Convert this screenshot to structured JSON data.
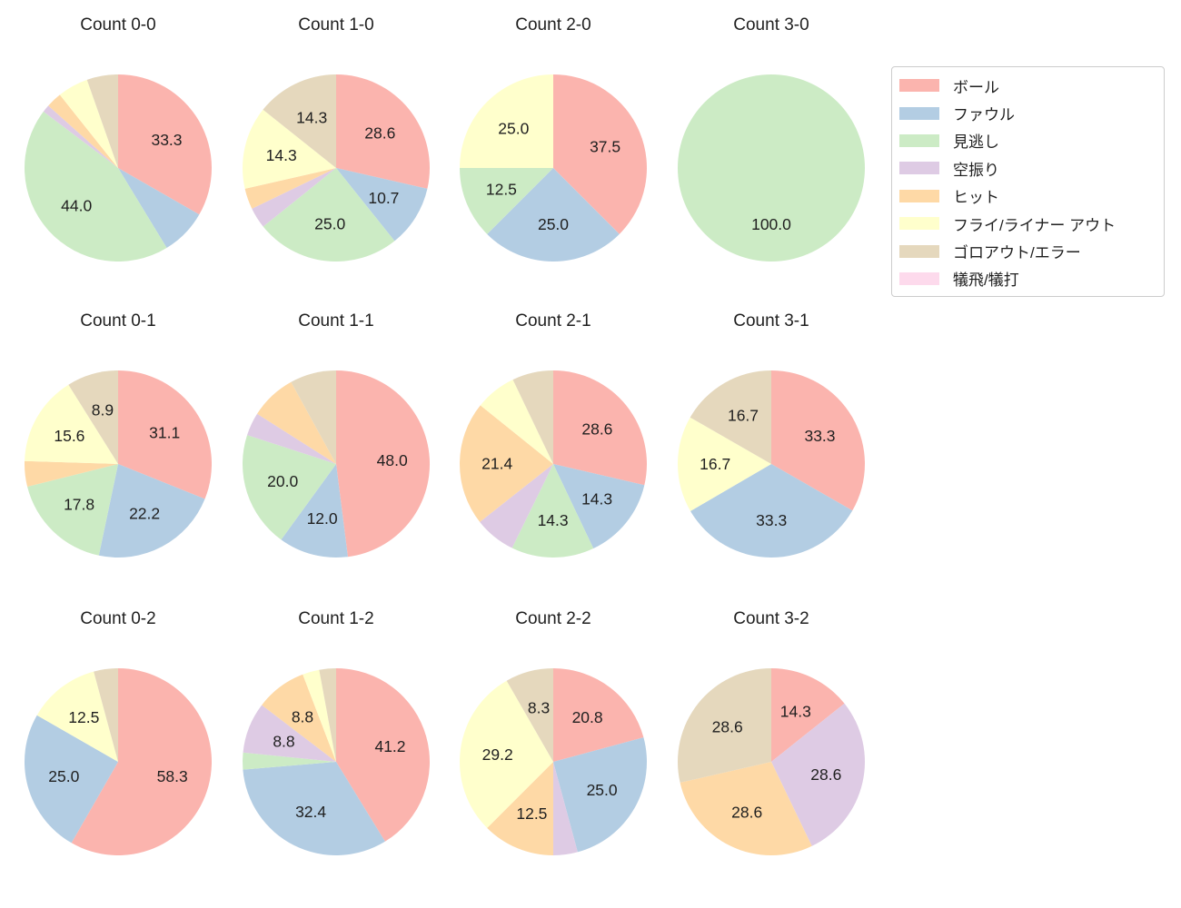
{
  "figure": {
    "kind": "pie-chart-grid",
    "background": "#ffffff",
    "text_color": "#1f1f1f",
    "grid": "3 rows x 4 columns"
  },
  "legend": {
    "position": "top-right",
    "border_color": "#cccccc",
    "items": [
      {
        "label": "ボール",
        "color": "#fbb4ae"
      },
      {
        "label": "ファウル",
        "color": "#b3cde3"
      },
      {
        "label": "見逃し",
        "color": "#ccebc5"
      },
      {
        "label": "空振り",
        "color": "#decbe4"
      },
      {
        "label": "ヒット",
        "color": "#fed9a6"
      },
      {
        "label": "フライ/ライナー アウト",
        "color": "#ffffcc"
      },
      {
        "label": "ゴロアウト/エラー",
        "color": "#e5d8bd"
      },
      {
        "label": "犠飛/犠打",
        "color": "#fddaec"
      }
    ]
  },
  "chart_data": [
    {
      "type": "pie",
      "title": "Count 0-0",
      "start_angle": 90,
      "direction": "clockwise",
      "slices": [
        {
          "category": "ボール",
          "value": 33.3,
          "label": "33.3"
        },
        {
          "category": "ファウル",
          "value": 8.0,
          "label": ""
        },
        {
          "category": "見逃し",
          "value": 44.0,
          "label": "44.0"
        },
        {
          "category": "空振り",
          "value": 1.3,
          "label": ""
        },
        {
          "category": "ヒット",
          "value": 2.7,
          "label": ""
        },
        {
          "category": "フライ/ライナー アウト",
          "value": 5.3,
          "label": ""
        },
        {
          "category": "ゴロアウト/エラー",
          "value": 5.4,
          "label": ""
        }
      ]
    },
    {
      "type": "pie",
      "title": "Count 1-0",
      "start_angle": 90,
      "direction": "clockwise",
      "slices": [
        {
          "category": "ボール",
          "value": 28.6,
          "label": "28.6"
        },
        {
          "category": "ファウル",
          "value": 10.7,
          "label": "10.7"
        },
        {
          "category": "見逃し",
          "value": 25.0,
          "label": "25.0"
        },
        {
          "category": "空振り",
          "value": 3.6,
          "label": ""
        },
        {
          "category": "ヒット",
          "value": 3.6,
          "label": ""
        },
        {
          "category": "フライ/ライナー アウト",
          "value": 14.3,
          "label": "14.3"
        },
        {
          "category": "ゴロアウト/エラー",
          "value": 14.3,
          "label": "14.3"
        }
      ]
    },
    {
      "type": "pie",
      "title": "Count 2-0",
      "start_angle": 90,
      "direction": "clockwise",
      "slices": [
        {
          "category": "ボール",
          "value": 37.5,
          "label": "37.5"
        },
        {
          "category": "ファウル",
          "value": 25.0,
          "label": "25.0"
        },
        {
          "category": "見逃し",
          "value": 12.5,
          "label": "12.5"
        },
        {
          "category": "フライ/ライナー アウト",
          "value": 25.0,
          "label": "25.0"
        }
      ]
    },
    {
      "type": "pie",
      "title": "Count 3-0",
      "start_angle": 90,
      "direction": "clockwise",
      "slices": [
        {
          "category": "見逃し",
          "value": 100.0,
          "label": "100.0"
        }
      ]
    },
    {
      "type": "pie",
      "title": "Count 0-1",
      "start_angle": 90,
      "direction": "clockwise",
      "slices": [
        {
          "category": "ボール",
          "value": 31.1,
          "label": "31.1"
        },
        {
          "category": "ファウル",
          "value": 22.2,
          "label": "22.2"
        },
        {
          "category": "見逃し",
          "value": 17.8,
          "label": "17.8"
        },
        {
          "category": "ヒット",
          "value": 4.4,
          "label": ""
        },
        {
          "category": "フライ/ライナー アウト",
          "value": 15.6,
          "label": "15.6"
        },
        {
          "category": "ゴロアウト/エラー",
          "value": 8.9,
          "label": "8.9"
        }
      ]
    },
    {
      "type": "pie",
      "title": "Count 1-1",
      "start_angle": 90,
      "direction": "clockwise",
      "slices": [
        {
          "category": "ボール",
          "value": 48.0,
          "label": "48.0"
        },
        {
          "category": "ファウル",
          "value": 12.0,
          "label": "12.0"
        },
        {
          "category": "見逃し",
          "value": 20.0,
          "label": "20.0"
        },
        {
          "category": "空振り",
          "value": 4.0,
          "label": ""
        },
        {
          "category": "ヒット",
          "value": 8.0,
          "label": ""
        },
        {
          "category": "ゴロアウト/エラー",
          "value": 8.0,
          "label": ""
        }
      ]
    },
    {
      "type": "pie",
      "title": "Count 2-1",
      "start_angle": 90,
      "direction": "clockwise",
      "slices": [
        {
          "category": "ボール",
          "value": 28.6,
          "label": "28.6"
        },
        {
          "category": "ファウル",
          "value": 14.3,
          "label": "14.3"
        },
        {
          "category": "見逃し",
          "value": 14.3,
          "label": "14.3"
        },
        {
          "category": "空振り",
          "value": 7.1,
          "label": ""
        },
        {
          "category": "ヒット",
          "value": 21.4,
          "label": "21.4"
        },
        {
          "category": "フライ/ライナー アウト",
          "value": 7.1,
          "label": ""
        },
        {
          "category": "ゴロアウト/エラー",
          "value": 7.1,
          "label": ""
        }
      ]
    },
    {
      "type": "pie",
      "title": "Count 3-1",
      "start_angle": 90,
      "direction": "clockwise",
      "slices": [
        {
          "category": "ボール",
          "value": 33.3,
          "label": "33.3"
        },
        {
          "category": "ファウル",
          "value": 33.3,
          "label": "33.3"
        },
        {
          "category": "フライ/ライナー アウト",
          "value": 16.7,
          "label": "16.7"
        },
        {
          "category": "ゴロアウト/エラー",
          "value": 16.7,
          "label": "16.7"
        }
      ]
    },
    {
      "type": "pie",
      "title": "Count 0-2",
      "start_angle": 90,
      "direction": "clockwise",
      "slices": [
        {
          "category": "ボール",
          "value": 58.3,
          "label": "58.3"
        },
        {
          "category": "ファウル",
          "value": 25.0,
          "label": "25.0"
        },
        {
          "category": "フライ/ライナー アウト",
          "value": 12.5,
          "label": "12.5"
        },
        {
          "category": "ゴロアウト/エラー",
          "value": 4.2,
          "label": ""
        }
      ]
    },
    {
      "type": "pie",
      "title": "Count 1-2",
      "start_angle": 90,
      "direction": "clockwise",
      "slices": [
        {
          "category": "ボール",
          "value": 41.2,
          "label": "41.2"
        },
        {
          "category": "ファウル",
          "value": 32.4,
          "label": "32.4"
        },
        {
          "category": "見逃し",
          "value": 2.9,
          "label": ""
        },
        {
          "category": "空振り",
          "value": 8.8,
          "label": "8.8"
        },
        {
          "category": "ヒット",
          "value": 8.8,
          "label": "8.8"
        },
        {
          "category": "フライ/ライナー アウト",
          "value": 2.9,
          "label": ""
        },
        {
          "category": "ゴロアウト/エラー",
          "value": 2.9,
          "label": ""
        }
      ]
    },
    {
      "type": "pie",
      "title": "Count 2-2",
      "start_angle": 90,
      "direction": "clockwise",
      "slices": [
        {
          "category": "ボール",
          "value": 20.8,
          "label": "20.8"
        },
        {
          "category": "ファウル",
          "value": 25.0,
          "label": "25.0"
        },
        {
          "category": "空振り",
          "value": 4.2,
          "label": ""
        },
        {
          "category": "ヒット",
          "value": 12.5,
          "label": "12.5"
        },
        {
          "category": "フライ/ライナー アウト",
          "value": 29.2,
          "label": "29.2"
        },
        {
          "category": "ゴロアウト/エラー",
          "value": 8.3,
          "label": "8.3"
        }
      ]
    },
    {
      "type": "pie",
      "title": "Count 3-2",
      "start_angle": 90,
      "direction": "clockwise",
      "slices": [
        {
          "category": "ボール",
          "value": 14.3,
          "label": "14.3"
        },
        {
          "category": "空振り",
          "value": 28.6,
          "label": "28.6"
        },
        {
          "category": "ヒット",
          "value": 28.6,
          "label": "28.6"
        },
        {
          "category": "ゴロアウト/エラー",
          "value": 28.6,
          "label": "28.6"
        }
      ]
    }
  ]
}
